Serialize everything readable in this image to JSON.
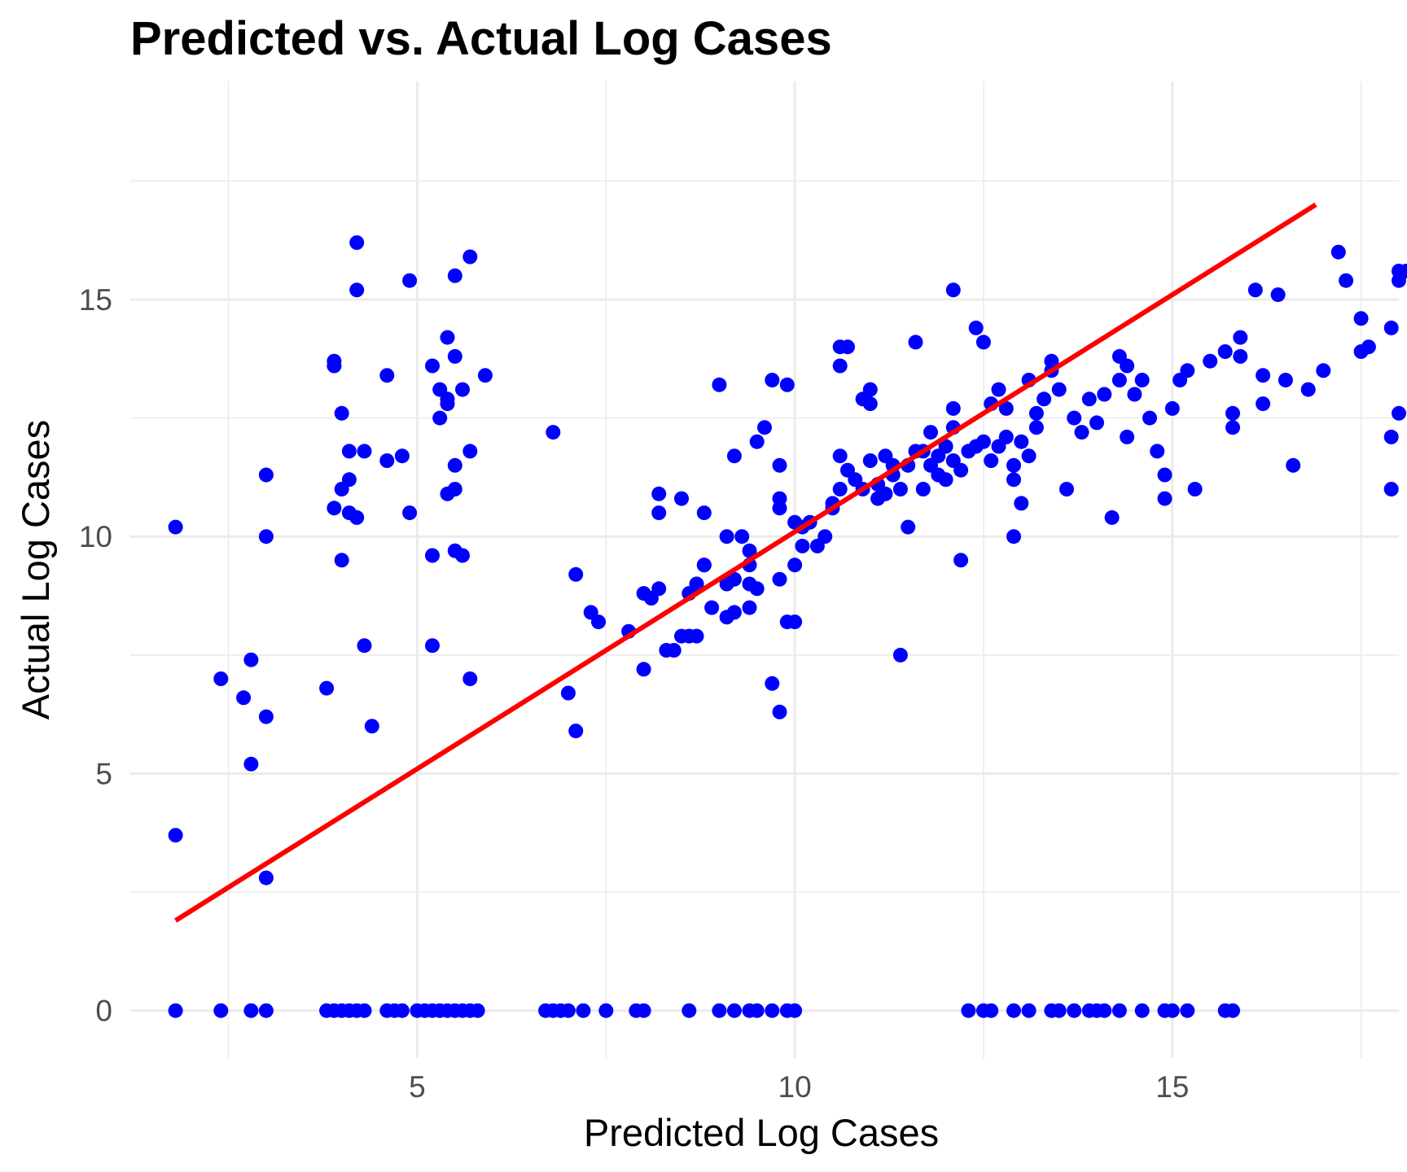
{
  "chart_data": {
    "type": "scatter",
    "title": "Predicted vs. Actual Log Cases",
    "xlabel": "Predicted Log Cases",
    "ylabel": "Actual Log Cases",
    "xlim": [
      1.2,
      18.0
    ],
    "ylim": [
      -1.0,
      19.6
    ],
    "x_ticks": [
      5,
      10,
      15
    ],
    "y_ticks": [
      0,
      5,
      10,
      15
    ],
    "x_tick_labels": [
      "5",
      "10",
      "15"
    ],
    "y_tick_labels": [
      "0",
      "5",
      "10",
      "15"
    ],
    "grid": true,
    "legend": "none",
    "point_color": "#0000ff",
    "line_color": "#ff0000",
    "fit_line": {
      "x": [
        1.8,
        16.9
      ],
      "y": [
        1.9,
        17.0
      ]
    },
    "points": [
      [
        1.8,
        10.2
      ],
      [
        1.8,
        3.7
      ],
      [
        1.8,
        0
      ],
      [
        2.4,
        0
      ],
      [
        2.4,
        7.0
      ],
      [
        2.7,
        6.6
      ],
      [
        2.8,
        7.4
      ],
      [
        2.8,
        5.2
      ],
      [
        2.8,
        0
      ],
      [
        3.0,
        11.3
      ],
      [
        3.0,
        10.0
      ],
      [
        3.0,
        6.2
      ],
      [
        3.0,
        2.8
      ],
      [
        3.0,
        0
      ],
      [
        3.8,
        6.8
      ],
      [
        3.9,
        13.7
      ],
      [
        3.9,
        13.6
      ],
      [
        3.9,
        10.6
      ],
      [
        4.0,
        12.6
      ],
      [
        4.0,
        11.0
      ],
      [
        4.0,
        9.5
      ],
      [
        4.1,
        11.8
      ],
      [
        4.1,
        11.2
      ],
      [
        4.1,
        10.5
      ],
      [
        4.2,
        16.2
      ],
      [
        4.2,
        15.2
      ],
      [
        4.2,
        10.4
      ],
      [
        4.3,
        11.8
      ],
      [
        4.3,
        7.7
      ],
      [
        4.4,
        6.0
      ],
      [
        3.8,
        0
      ],
      [
        3.9,
        0
      ],
      [
        4.0,
        0
      ],
      [
        4.1,
        0
      ],
      [
        4.2,
        0
      ],
      [
        4.3,
        0
      ],
      [
        4.6,
        0
      ],
      [
        4.7,
        0
      ],
      [
        4.8,
        0
      ],
      [
        5.0,
        0
      ],
      [
        5.1,
        0
      ],
      [
        5.2,
        0
      ],
      [
        5.3,
        0
      ],
      [
        5.4,
        0
      ],
      [
        5.5,
        0
      ],
      [
        5.6,
        0
      ],
      [
        5.7,
        0
      ],
      [
        5.8,
        0
      ],
      [
        4.6,
        13.4
      ],
      [
        4.6,
        11.6
      ],
      [
        4.8,
        11.7
      ],
      [
        4.9,
        15.4
      ],
      [
        4.9,
        10.5
      ],
      [
        5.2,
        13.6
      ],
      [
        5.2,
        9.6
      ],
      [
        5.2,
        7.7
      ],
      [
        5.3,
        13.1
      ],
      [
        5.3,
        12.5
      ],
      [
        5.4,
        14.2
      ],
      [
        5.4,
        12.8
      ],
      [
        5.4,
        12.9
      ],
      [
        5.4,
        10.9
      ],
      [
        5.5,
        15.5
      ],
      [
        5.5,
        13.8
      ],
      [
        5.5,
        11.5
      ],
      [
        5.5,
        11.0
      ],
      [
        5.5,
        9.7
      ],
      [
        5.6,
        13.1
      ],
      [
        5.6,
        9.6
      ],
      [
        5.7,
        15.9
      ],
      [
        5.7,
        11.8
      ],
      [
        5.7,
        7.0
      ],
      [
        5.9,
        13.4
      ],
      [
        6.8,
        12.2
      ],
      [
        7.0,
        6.7
      ],
      [
        7.1,
        5.9
      ],
      [
        7.1,
        9.2
      ],
      [
        7.3,
        8.4
      ],
      [
        7.4,
        8.2
      ],
      [
        6.7,
        0
      ],
      [
        6.8,
        0
      ],
      [
        6.9,
        0
      ],
      [
        7.0,
        0
      ],
      [
        7.2,
        0
      ],
      [
        7.5,
        0
      ],
      [
        7.8,
        8.0
      ],
      [
        8.0,
        7.2
      ],
      [
        8.0,
        8.8
      ],
      [
        8.1,
        8.7
      ],
      [
        8.2,
        8.9
      ],
      [
        8.2,
        10.9
      ],
      [
        8.2,
        10.5
      ],
      [
        8.3,
        7.6
      ],
      [
        8.4,
        7.6
      ],
      [
        8.5,
        7.9
      ],
      [
        8.5,
        10.8
      ],
      [
        8.6,
        7.9
      ],
      [
        8.6,
        8.8
      ],
      [
        8.7,
        9.0
      ],
      [
        8.7,
        9.0
      ],
      [
        8.7,
        7.9
      ],
      [
        8.8,
        9.4
      ],
      [
        8.8,
        9.4
      ],
      [
        8.8,
        10.5
      ],
      [
        8.9,
        8.5
      ],
      [
        9.0,
        13.2
      ],
      [
        9.1,
        10.0
      ],
      [
        9.1,
        9.0
      ],
      [
        9.1,
        8.3
      ],
      [
        9.2,
        11.7
      ],
      [
        9.2,
        9.1
      ],
      [
        9.2,
        8.4
      ],
      [
        7.9,
        0
      ],
      [
        8.0,
        0
      ],
      [
        8.6,
        0
      ],
      [
        9.0,
        0
      ],
      [
        9.2,
        0
      ],
      [
        9.3,
        10.0
      ],
      [
        9.4,
        9.7
      ],
      [
        9.4,
        9.4
      ],
      [
        9.4,
        9.0
      ],
      [
        9.4,
        8.5
      ],
      [
        9.5,
        12.0
      ],
      [
        9.5,
        8.9
      ],
      [
        9.6,
        12.3
      ],
      [
        9.7,
        13.3
      ],
      [
        9.8,
        10.8
      ],
      [
        9.8,
        10.6
      ],
      [
        9.8,
        9.1
      ],
      [
        9.9,
        13.2
      ],
      [
        10.0,
        10.3
      ],
      [
        10.0,
        9.4
      ],
      [
        10.0,
        8.2
      ],
      [
        10.1,
        9.8
      ],
      [
        10.1,
        10.2
      ],
      [
        10.2,
        10.3
      ],
      [
        10.3,
        9.8
      ],
      [
        10.4,
        10.0
      ],
      [
        10.5,
        10.6
      ],
      [
        10.6,
        14.0
      ],
      [
        10.6,
        13.6
      ],
      [
        10.6,
        11.7
      ],
      [
        10.7,
        14.0
      ],
      [
        9.7,
        6.9
      ],
      [
        9.8,
        6.3
      ],
      [
        9.9,
        8.2
      ],
      [
        9.8,
        11.5
      ],
      [
        9.4,
        0
      ],
      [
        9.5,
        0
      ],
      [
        9.7,
        0
      ],
      [
        9.9,
        0
      ],
      [
        10.0,
        0
      ],
      [
        10.9,
        12.9
      ],
      [
        11.0,
        13.1
      ],
      [
        11.0,
        12.8
      ],
      [
        11.1,
        10.8
      ],
      [
        11.2,
        11.7
      ],
      [
        11.3,
        11.5
      ],
      [
        11.4,
        7.5
      ],
      [
        11.5,
        10.2
      ],
      [
        11.6,
        14.1
      ],
      [
        11.7,
        11.8
      ],
      [
        11.8,
        12.2
      ],
      [
        11.9,
        11.3
      ],
      [
        12.0,
        11.9
      ],
      [
        12.1,
        15.2
      ],
      [
        12.1,
        12.7
      ],
      [
        12.1,
        12.3
      ],
      [
        12.2,
        9.5
      ],
      [
        10.5,
        10.7
      ],
      [
        10.6,
        11.0
      ],
      [
        10.7,
        11.4
      ],
      [
        10.8,
        11.2
      ],
      [
        10.9,
        11.0
      ],
      [
        11.0,
        11.6
      ],
      [
        11.1,
        11.1
      ],
      [
        11.2,
        10.9
      ],
      [
        11.3,
        11.3
      ],
      [
        11.4,
        11.0
      ],
      [
        11.5,
        11.5
      ],
      [
        11.6,
        11.8
      ],
      [
        11.7,
        11.0
      ],
      [
        11.8,
        11.5
      ],
      [
        11.9,
        11.7
      ],
      [
        12.0,
        11.2
      ],
      [
        12.1,
        11.6
      ],
      [
        12.2,
        11.4
      ],
      [
        12.3,
        11.8
      ],
      [
        12.4,
        11.9
      ],
      [
        12.5,
        12.0
      ],
      [
        12.6,
        11.6
      ],
      [
        12.7,
        11.9
      ],
      [
        12.8,
        12.1
      ],
      [
        12.9,
        11.5
      ],
      [
        13.0,
        12.0
      ],
      [
        13.1,
        11.7
      ],
      [
        13.2,
        12.3
      ],
      [
        12.4,
        14.4
      ],
      [
        12.5,
        14.1
      ],
      [
        12.6,
        12.8
      ],
      [
        12.7,
        13.1
      ],
      [
        12.8,
        12.7
      ],
      [
        12.9,
        11.2
      ],
      [
        12.9,
        10.0
      ],
      [
        13.0,
        10.7
      ],
      [
        13.1,
        13.3
      ],
      [
        13.2,
        12.6
      ],
      [
        13.3,
        12.9
      ],
      [
        13.4,
        13.5
      ],
      [
        13.4,
        13.7
      ],
      [
        13.5,
        13.1
      ],
      [
        13.6,
        11.0
      ],
      [
        13.7,
        12.5
      ],
      [
        13.8,
        12.2
      ],
      [
        13.9,
        12.9
      ],
      [
        14.0,
        12.4
      ],
      [
        14.1,
        13.0
      ],
      [
        14.2,
        10.4
      ],
      [
        14.3,
        13.3
      ],
      [
        14.4,
        12.1
      ],
      [
        14.5,
        13.0
      ],
      [
        14.6,
        13.3
      ],
      [
        14.7,
        12.5
      ],
      [
        14.8,
        11.8
      ],
      [
        14.9,
        10.8
      ],
      [
        15.0,
        12.7
      ],
      [
        15.1,
        13.3
      ],
      [
        15.2,
        13.5
      ],
      [
        14.3,
        13.8
      ],
      [
        14.4,
        13.6
      ],
      [
        14.9,
        11.3
      ],
      [
        15.3,
        11.0
      ],
      [
        15.5,
        13.7
      ],
      [
        15.7,
        13.9
      ],
      [
        15.8,
        12.6
      ],
      [
        15.8,
        12.3
      ],
      [
        15.9,
        13.8
      ],
      [
        15.9,
        14.2
      ],
      [
        16.1,
        15.2
      ],
      [
        16.2,
        12.8
      ],
      [
        16.2,
        13.4
      ],
      [
        16.4,
        15.1
      ],
      [
        16.5,
        13.3
      ],
      [
        16.6,
        11.5
      ],
      [
        16.8,
        13.1
      ],
      [
        17.0,
        13.5
      ],
      [
        17.2,
        16.0
      ],
      [
        17.3,
        15.4
      ],
      [
        17.5,
        14.6
      ],
      [
        17.5,
        13.9
      ],
      [
        17.6,
        14.0
      ],
      [
        17.9,
        12.1
      ],
      [
        17.9,
        11.0
      ],
      [
        17.9,
        14.4
      ],
      [
        18.0,
        12.6
      ],
      [
        18.0,
        15.4
      ],
      [
        18.0,
        15.6
      ],
      [
        18.1,
        15.6
      ],
      [
        18.3,
        12.6
      ],
      [
        12.3,
        0
      ],
      [
        12.5,
        0
      ],
      [
        12.6,
        0
      ],
      [
        12.9,
        0
      ],
      [
        13.1,
        0
      ],
      [
        13.4,
        0
      ],
      [
        13.5,
        0
      ],
      [
        13.7,
        0
      ],
      [
        13.9,
        0
      ],
      [
        14.0,
        0
      ],
      [
        14.1,
        0
      ],
      [
        14.3,
        0
      ],
      [
        14.6,
        0
      ],
      [
        14.9,
        0
      ],
      [
        15.0,
        0
      ],
      [
        15.2,
        0
      ],
      [
        15.7,
        0
      ],
      [
        15.8,
        0
      ]
    ]
  }
}
